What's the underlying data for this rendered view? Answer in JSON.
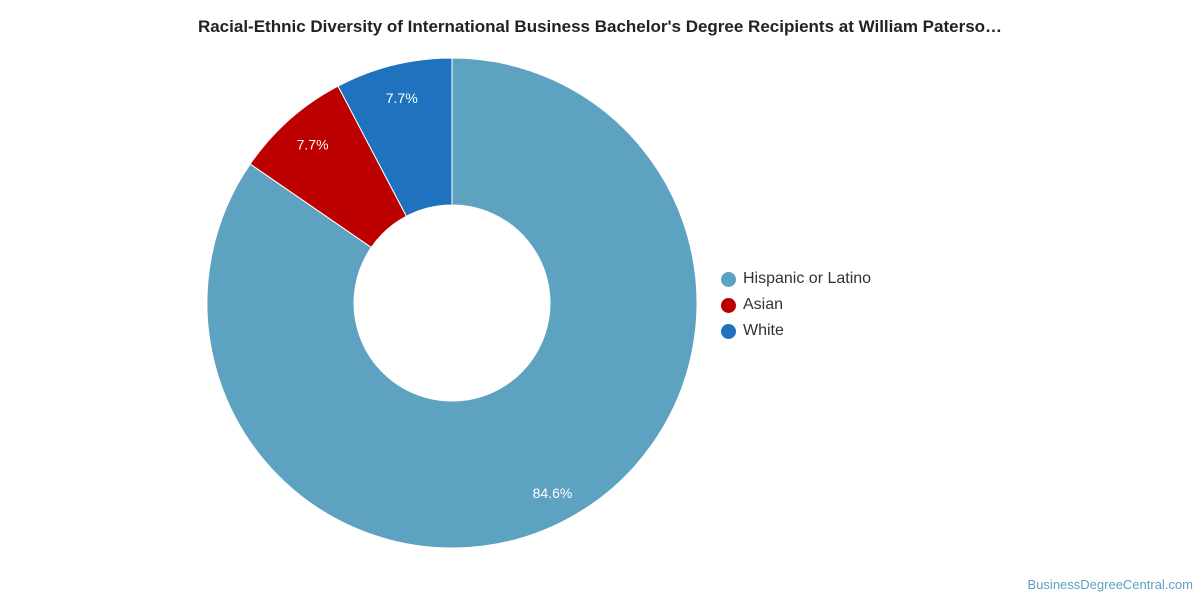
{
  "chart_data": {
    "type": "pie",
    "title": "Racial-Ethnic Diversity of International Business Bachelor's Degree Recipients at William Paterso…",
    "donut": true,
    "legend_position": "right",
    "slices": [
      {
        "label": "Hispanic or Latino",
        "value": 84.6,
        "value_label": "84.6%",
        "color": "#5da2c0"
      },
      {
        "label": "Asian",
        "value": 7.7,
        "value_label": "7.7%",
        "color": "#bc0000"
      },
      {
        "label": "White",
        "value": 7.7,
        "value_label": "7.7%",
        "color": "#1f72bd"
      }
    ]
  },
  "watermark": "BusinessDegreeCentral.com"
}
